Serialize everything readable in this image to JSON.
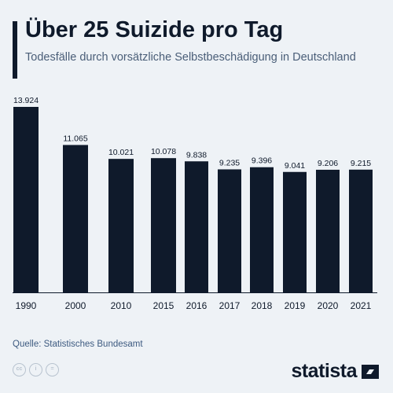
{
  "header": {
    "title": "Über 25 Suizide pro Tag",
    "subtitle": "Todesfälle durch vorsätzliche Selbstbeschädigung in Deutschland"
  },
  "colors": {
    "bar": "#0f1a2b",
    "background": "#eef2f6",
    "accent": "#0f1a2b"
  },
  "chart_data": {
    "type": "bar",
    "categories": [
      "1990",
      "2000",
      "2010",
      "2015",
      "2016",
      "2017",
      "2018",
      "2019",
      "2020",
      "2021"
    ],
    "values": [
      13924,
      11065,
      10021,
      10078,
      9838,
      9235,
      9396,
      9041,
      9206,
      9215
    ],
    "value_labels": [
      "13.924",
      "11.065",
      "10.021",
      "10.078",
      "9.838",
      "9.235",
      "9.396",
      "9.041",
      "9.206",
      "9.215"
    ],
    "title": "Über 25 Suizide pro Tag",
    "subtitle": "Todesfälle durch vorsätzliche Selbstbeschädigung in Deutschland",
    "ylim": [
      0,
      13924
    ],
    "grid": false,
    "legend": "none"
  },
  "footer": {
    "source": "Quelle: Statistisches Bundesamt",
    "license_icons": [
      "cc-icon",
      "by-icon",
      "nd-icon"
    ],
    "logo_text": "statista"
  }
}
